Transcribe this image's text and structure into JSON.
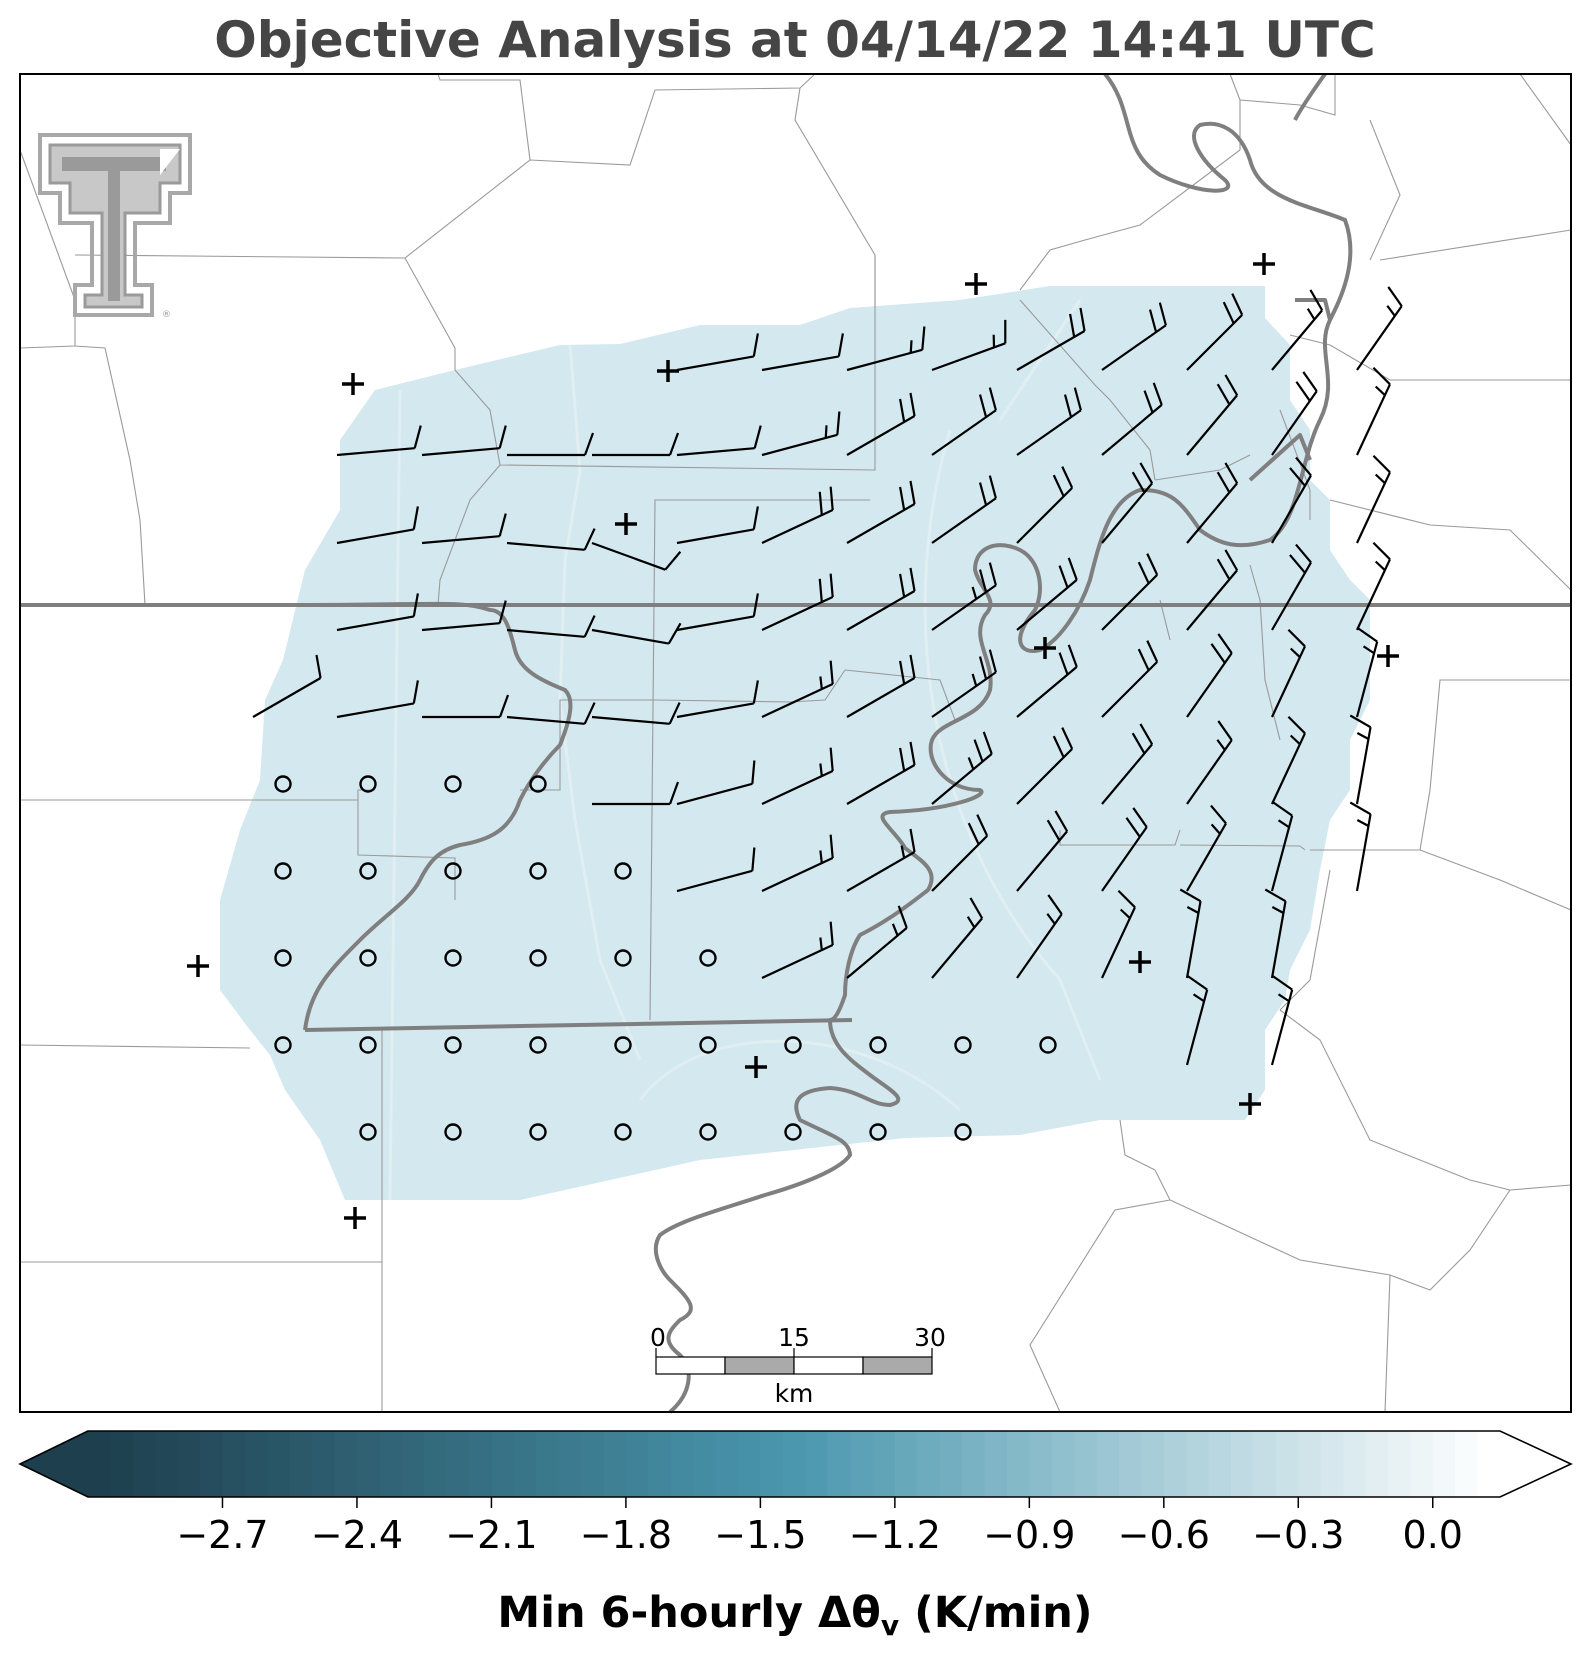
{
  "title": "Objective Analysis at 04/14/22 14:41 UTC",
  "logo": {
    "name": "texas-tech-double-t-logo",
    "text": "TT",
    "mark": "®"
  },
  "colorbar": {
    "label_prefix": "Min 6-hourly Δθ",
    "label_subscript": "v",
    "label_suffix": " (K/min)",
    "ticks": [
      "−2.7",
      "−2.4",
      "−2.1",
      "−1.8",
      "−1.5",
      "−1.2",
      "−0.9",
      "−0.6",
      "−0.3",
      "0.0"
    ],
    "tick_values": [
      -2.7,
      -2.4,
      -2.1,
      -1.8,
      -1.5,
      -1.2,
      -0.9,
      -0.6,
      -0.3,
      0.0
    ],
    "range": [
      -3.0,
      0.15
    ],
    "extend": "both",
    "colormap": {
      "dark": "#1e3f4e",
      "mid": "#4a97ae",
      "light": "#ffffff"
    },
    "field_color": "#d4e8ef"
  },
  "scale_bar": {
    "labels": [
      "0",
      "15",
      "30"
    ],
    "unit": "km"
  },
  "stations": {
    "symbol": "+",
    "count": 13
  },
  "calm_marker": "circle",
  "colors": {
    "state_border": "#808080",
    "county_border": "#a9a9a9",
    "barb": "#000000",
    "title": "#454545"
  }
}
